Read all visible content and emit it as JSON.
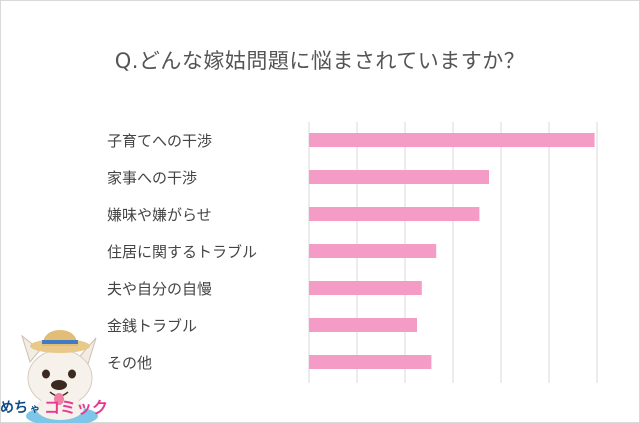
{
  "chart_data": {
    "type": "bar",
    "orientation": "horizontal",
    "title": "Q.どんな嫁姑問題に悩まされていますか？",
    "categories": [
      "子育てへの干渉",
      "家事への干渉",
      "嫌味や嫌がらせ",
      "住居に関するトラブル",
      "夫や自分の自慢",
      "金銭トラブル",
      "その他"
    ],
    "values": [
      59.5,
      37.5,
      35.5,
      26.5,
      23.5,
      22.5,
      25.5
    ],
    "xlim": [
      0,
      60
    ],
    "grid": true,
    "bar_color": "#f59cc6",
    "grid_color": "#d9d9d9"
  },
  "logo": {
    "text": "めちゃコミック",
    "text_color": "#e8388f",
    "dark_text_color": "#0e4a86"
  }
}
